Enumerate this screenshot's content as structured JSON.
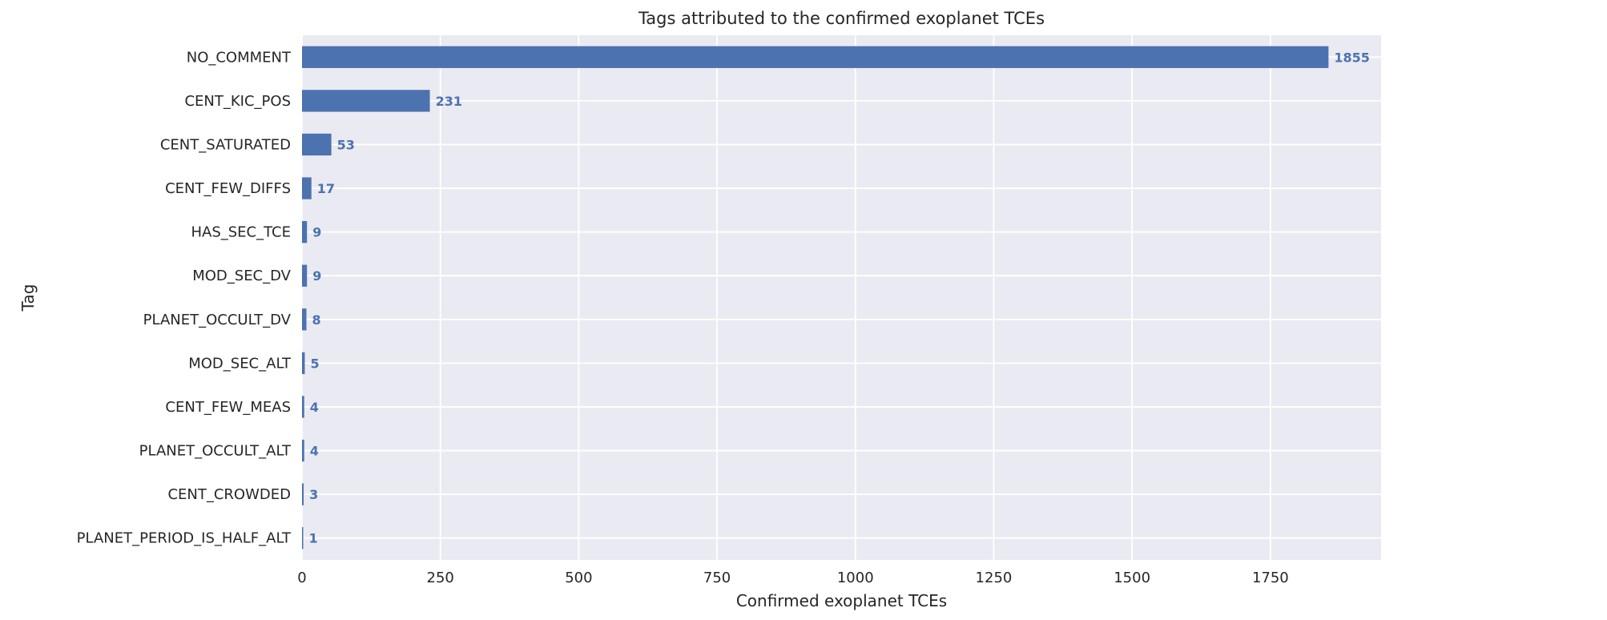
{
  "chart_data": {
    "type": "bar",
    "orientation": "horizontal",
    "title": "Tags attributed to the confirmed exoplanet TCEs",
    "xlabel": "Confirmed exoplanet TCEs",
    "ylabel": "Tag",
    "xlim": [
      0,
      1950
    ],
    "x_ticks": [
      0,
      250,
      500,
      750,
      1000,
      1250,
      1500,
      1750
    ],
    "grid": true,
    "categories": [
      "NO_COMMENT",
      "CENT_KIC_POS",
      "CENT_SATURATED",
      "CENT_FEW_DIFFS",
      "HAS_SEC_TCE",
      "MOD_SEC_DV",
      "PLANET_OCCULT_DV",
      "MOD_SEC_ALT",
      "CENT_FEW_MEAS",
      "PLANET_OCCULT_ALT",
      "CENT_CROWDED",
      "PLANET_PERIOD_IS_HALF_ALT"
    ],
    "values": [
      1855,
      231,
      53,
      17,
      9,
      9,
      8,
      5,
      4,
      4,
      3,
      1
    ],
    "bar_color": "#4c72b0",
    "background_color": "#eaeaf2"
  }
}
